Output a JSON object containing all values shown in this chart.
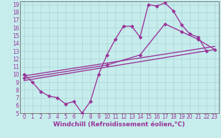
{
  "xlabel": "Windchill (Refroidissement éolien,°C)",
  "bg_color": "#c6ecec",
  "grid_color": "#a8d4d4",
  "line_color": "#993399",
  "xlim": [
    -0.5,
    23.5
  ],
  "ylim": [
    5,
    19.4
  ],
  "xticks": [
    0,
    1,
    2,
    3,
    4,
    5,
    6,
    7,
    8,
    9,
    10,
    11,
    12,
    13,
    14,
    15,
    16,
    17,
    18,
    19,
    20,
    21,
    22,
    23
  ],
  "yticks": [
    5,
    6,
    7,
    8,
    9,
    10,
    11,
    12,
    13,
    14,
    15,
    16,
    17,
    18,
    19
  ],
  "curve1_x": [
    0,
    1,
    2,
    3,
    4,
    5,
    6,
    7,
    8,
    9,
    10,
    11,
    12,
    13,
    14,
    15,
    16,
    17,
    18,
    19,
    20,
    21,
    22
  ],
  "curve1_y": [
    10.0,
    9.0,
    7.8,
    7.2,
    7.0,
    6.2,
    6.5,
    5.0,
    6.5,
    10.0,
    12.5,
    14.5,
    16.2,
    16.2,
    14.8,
    19.0,
    18.8,
    19.2,
    18.2,
    16.4,
    15.2,
    14.8,
    13.0
  ],
  "curve2_x": [
    0,
    10,
    14,
    17,
    19,
    21,
    23
  ],
  "curve2_y": [
    9.5,
    11.2,
    12.5,
    16.5,
    15.5,
    14.5,
    13.2
  ],
  "curve3_x": [
    0,
    23
  ],
  "curve3_y": [
    9.2,
    13.2
  ],
  "curve4_x": [
    0,
    23
  ],
  "curve4_y": [
    9.8,
    13.6
  ],
  "marker": "D",
  "markersize": 2.5,
  "linewidth": 1.0,
  "tick_fontsize": 5.5,
  "xlabel_fontsize": 6.5
}
